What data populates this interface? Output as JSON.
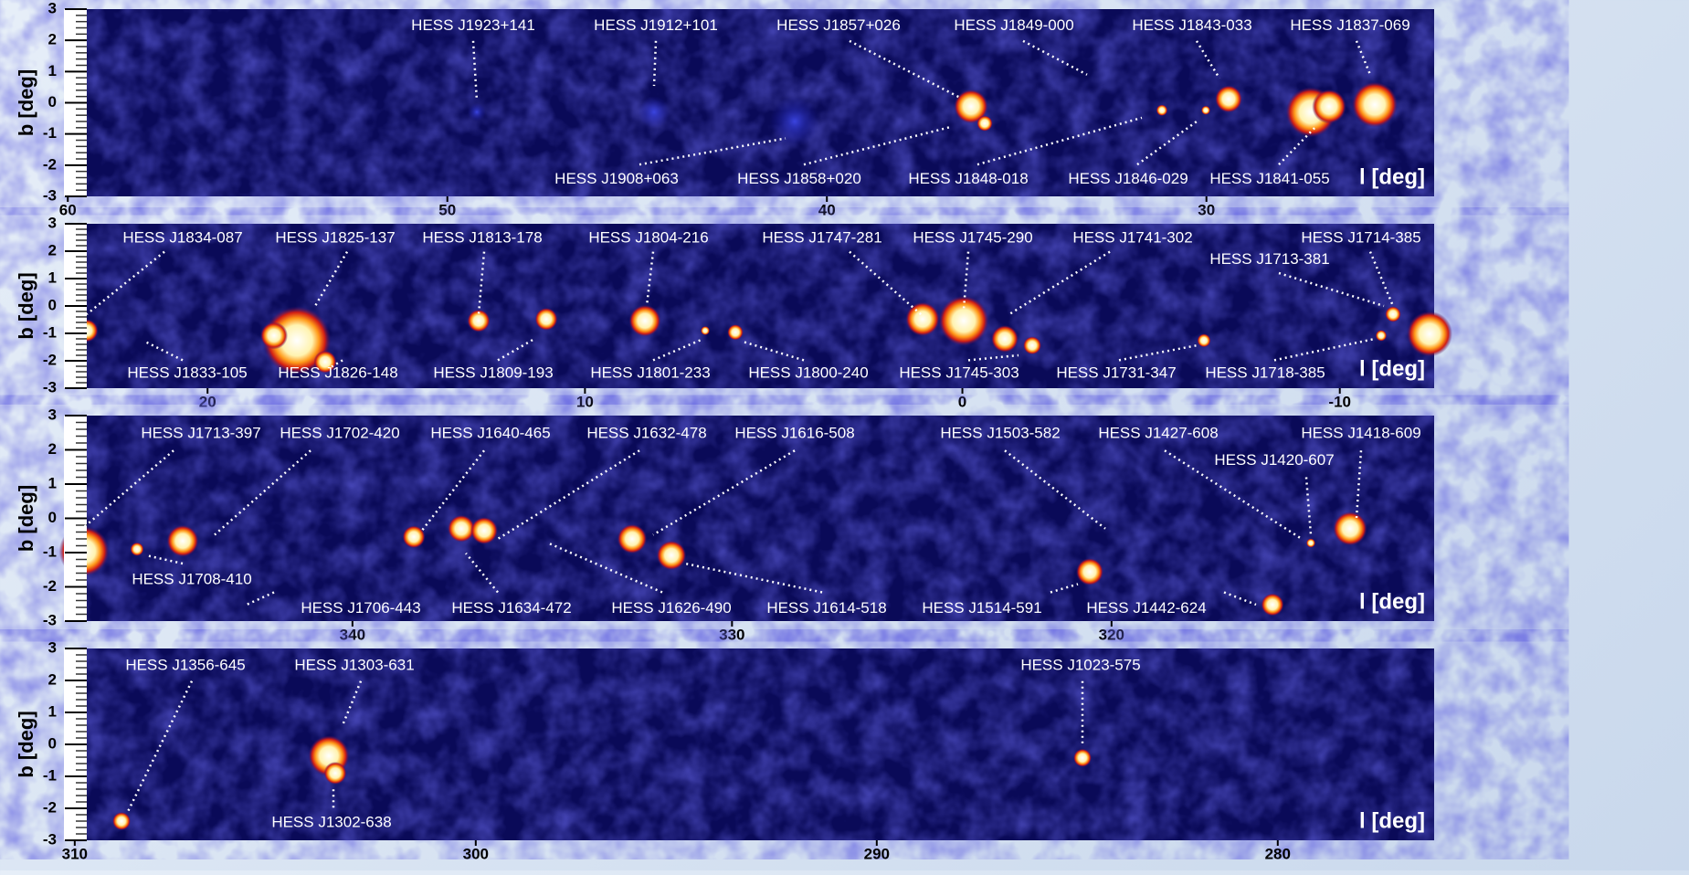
{
  "y_axis_label": "b [deg]",
  "x_axis_label": "l [deg]",
  "panels": [
    {
      "xlim": [
        59.5,
        24
      ],
      "ylim": [
        -3,
        3
      ],
      "xticks": [
        60,
        50,
        40,
        30
      ],
      "yticks": [
        -3,
        -2,
        -1,
        0,
        1,
        2,
        3
      ],
      "sources": [
        "HESS J1923+141",
        "HESS J1912+101",
        "HESS J1857+026",
        "HESS J1849-000",
        "HESS J1843-033",
        "HESS J1837-069",
        "HESS J1908+063",
        "HESS J1858+020",
        "HESS J1848-018",
        "HESS J1846-029",
        "HESS J1841-055"
      ]
    },
    {
      "xlim": [
        23.2,
        -12.5
      ],
      "ylim": [
        -3,
        3
      ],
      "xticks": [
        20,
        10,
        0,
        -10
      ],
      "yticks": [
        -3,
        -2,
        -1,
        0,
        1,
        2,
        3
      ],
      "sources": [
        "HESS J1834-087",
        "HESS J1825-137",
        "HESS J1813-178",
        "HESS J1804-216",
        "HESS J1747-281",
        "HESS J1745-290",
        "HESS J1741-302",
        "HESS J1713-381",
        "HESS J1714-385",
        "HESS J1833-105",
        "HESS J1826-148",
        "HESS J1809-193",
        "HESS J1801-233",
        "HESS J1800-240",
        "HESS J1745-303",
        "HESS J1731-347",
        "HESS J1718-385"
      ]
    },
    {
      "xlim": [
        347,
        311.5
      ],
      "ylim": [
        -3,
        3
      ],
      "xticks": [
        340,
        330,
        320
      ],
      "yticks": [
        -3,
        -2,
        -1,
        0,
        1,
        2,
        3
      ],
      "sources": [
        "HESS J1713-397",
        "HESS J1702-420",
        "HESS J1640-465",
        "HESS J1632-478",
        "HESS J1616-508",
        "HESS J1503-582",
        "HESS J1427-608",
        "HESS J1420-607",
        "HESS J1418-609",
        "HESS J1708-410",
        "HESS J1706-443",
        "HESS J1634-472",
        "HESS J1626-490",
        "HESS J1614-518",
        "HESS J1514-591",
        "HESS J1442-624"
      ]
    },
    {
      "xlim": [
        309.7,
        276.1
      ],
      "ylim": [
        -3,
        3
      ],
      "xticks": [
        310,
        300,
        290,
        280
      ],
      "yticks": [
        -3,
        -2,
        -1,
        0,
        1,
        2,
        3
      ],
      "sources": [
        "HESS J1356-645",
        "HESS J1303-631",
        "HESS J1023-575",
        "HESS J1302-638"
      ]
    }
  ]
}
